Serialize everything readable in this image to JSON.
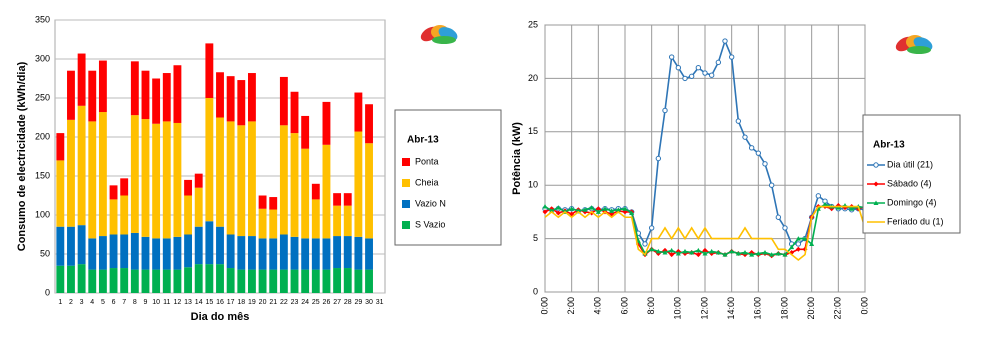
{
  "chart_data": [
    {
      "type": "bar",
      "stacked": true,
      "legend_title": "Abr-13",
      "ylabel": "Consumo de electricidade (kWh/dia)",
      "xlabel": "Dia do mês",
      "categories": [
        "1",
        "2",
        "3",
        "4",
        "5",
        "6",
        "7",
        "8",
        "9",
        "10",
        "11",
        "12",
        "13",
        "14",
        "15",
        "16",
        "17",
        "18",
        "19",
        "20",
        "21",
        "22",
        "23",
        "24",
        "25",
        "26",
        "27",
        "28",
        "29",
        "30",
        "31"
      ],
      "series": [
        {
          "name": "S Vazio",
          "color": "#00b050",
          "values": [
            35,
            35,
            37,
            30,
            30,
            32,
            32,
            30,
            30,
            30,
            30,
            30,
            33,
            37,
            37,
            37,
            32,
            30,
            30,
            30,
            30,
            30,
            30,
            30,
            30,
            30,
            32,
            32,
            30,
            30,
            null
          ]
        },
        {
          "name": "Vazio N",
          "color": "#0070c0",
          "values": [
            50,
            50,
            50,
            40,
            43,
            43,
            43,
            47,
            42,
            40,
            40,
            42,
            42,
            48,
            55,
            48,
            43,
            43,
            43,
            40,
            40,
            45,
            42,
            40,
            40,
            40,
            41,
            41,
            42,
            40,
            null
          ]
        },
        {
          "name": "Cheia",
          "color": "#ffc000",
          "values": [
            85,
            137,
            153,
            150,
            159,
            45,
            50,
            151,
            151,
            147,
            150,
            146,
            50,
            50,
            158,
            140,
            145,
            142,
            147,
            38,
            37,
            140,
            133,
            115,
            50,
            120,
            39,
            39,
            135,
            122,
            null
          ]
        },
        {
          "name": "Ponta",
          "color": "#ff0000",
          "values": [
            35,
            63,
            67,
            65,
            66,
            18,
            22,
            69,
            62,
            58,
            62,
            74,
            20,
            18,
            70,
            58,
            58,
            58,
            62,
            17,
            16,
            62,
            53,
            42,
            20,
            55,
            16,
            16,
            50,
            50,
            null
          ]
        }
      ],
      "ylim": [
        0,
        350
      ],
      "yticks": [
        0,
        50,
        100,
        150,
        200,
        250,
        300,
        350
      ],
      "grid": true
    },
    {
      "type": "line",
      "legend_title": "Abr-13",
      "ylabel": "Potência (kW)",
      "x": [
        0,
        0.5,
        1,
        1.5,
        2,
        2.5,
        3,
        3.5,
        4,
        4.5,
        5,
        5.5,
        6,
        6.5,
        7,
        7.5,
        8,
        8.5,
        9,
        9.5,
        10,
        10.5,
        11,
        11.5,
        12,
        12.5,
        13,
        13.5,
        14,
        14.5,
        15,
        15.5,
        16,
        16.5,
        17,
        17.5,
        18,
        18.5,
        19,
        19.5,
        20,
        20.5,
        21,
        21.5,
        22,
        22.5,
        23,
        23.5,
        24
      ],
      "series": [
        {
          "name": "Dia útil (21)",
          "color": "#2e75b6",
          "marker": "circle",
          "values": [
            7.8,
            7.7,
            7.8,
            7.7,
            7.8,
            7.6,
            7.7,
            7.8,
            7.7,
            7.8,
            7.7,
            7.8,
            7.8,
            7.5,
            5.5,
            4.5,
            6,
            12.5,
            17,
            22,
            21,
            20,
            20.2,
            21,
            20.5,
            20.3,
            21.5,
            23.5,
            22,
            16,
            14.5,
            13.5,
            13,
            12,
            10,
            7,
            6,
            4.5,
            4.5,
            5,
            7,
            9,
            8.5,
            8,
            7.8,
            7.8,
            7.7,
            7.8,
            7.7
          ]
        },
        {
          "name": "Sábado (4)",
          "color": "#ff0000",
          "marker": "diamond",
          "values": [
            7.5,
            7.8,
            7.4,
            7.6,
            7.3,
            7.7,
            7.5,
            7.4,
            7.8,
            7.5,
            7.3,
            7.6,
            7.5,
            7.5,
            4.5,
            3.5,
            4,
            3.6,
            3.9,
            3.5,
            3.8,
            3.6,
            3.7,
            3.5,
            3.9,
            3.6,
            3.7,
            3.5,
            3.8,
            3.6,
            3.5,
            3.7,
            3.5,
            3.6,
            3.4,
            3.6,
            3.5,
            3.7,
            4,
            4,
            7,
            8,
            8,
            7.8,
            8.1,
            7.9,
            8,
            7.8,
            8
          ]
        },
        {
          "name": "Domingo (4)",
          "color": "#00b050",
          "marker": "triangle",
          "values": [
            8,
            7.6,
            7.9,
            7.5,
            7.8,
            7.6,
            7.7,
            7.9,
            7.5,
            7.8,
            7.6,
            7.7,
            7.8,
            7.4,
            4.8,
            3.6,
            4,
            3.8,
            3.7,
            3.9,
            3.6,
            3.8,
            3.7,
            3.9,
            3.6,
            3.8,
            3.7,
            3.5,
            3.8,
            3.6,
            3.7,
            3.5,
            3.6,
            3.7,
            3.5,
            3.6,
            3.5,
            4.2,
            5,
            5,
            4.5,
            7.8,
            8.2,
            8,
            7.9,
            8.1,
            7.8,
            8,
            7.9
          ]
        },
        {
          "name": "Feriado du (1)",
          "color": "#ffc000",
          "marker": "none",
          "values": [
            7,
            7.5,
            7,
            7.5,
            7,
            7.5,
            7,
            7.5,
            7,
            7.5,
            7,
            7.5,
            7,
            7,
            4,
            3.5,
            5,
            5,
            6,
            5,
            6,
            5,
            6,
            5,
            6,
            5,
            5,
            5,
            5,
            5,
            6,
            5,
            5,
            5,
            5,
            4,
            4,
            3.5,
            3,
            3.5,
            7,
            8,
            8,
            8,
            8,
            8,
            8,
            8,
            6
          ]
        }
      ],
      "xlim": [
        0,
        24
      ],
      "xticks": [
        {
          "value": 0,
          "label": "0:00"
        },
        {
          "value": 2,
          "label": "2:00"
        },
        {
          "value": 4,
          "label": "4:00"
        },
        {
          "value": 6,
          "label": "6:00"
        },
        {
          "value": 8,
          "label": "8:00"
        },
        {
          "value": 10,
          "label": "10:00"
        },
        {
          "value": 12,
          "label": "12:00"
        },
        {
          "value": 14,
          "label": "14:00"
        },
        {
          "value": 16,
          "label": "16:00"
        },
        {
          "value": 18,
          "label": "18:00"
        },
        {
          "value": 20,
          "label": "20:00"
        },
        {
          "value": 22,
          "label": "22:00"
        },
        {
          "value": 24,
          "label": "0:00"
        }
      ],
      "ylim": [
        0,
        25
      ],
      "yticks": [
        0,
        5,
        10,
        15,
        20,
        25
      ],
      "grid": true
    }
  ]
}
